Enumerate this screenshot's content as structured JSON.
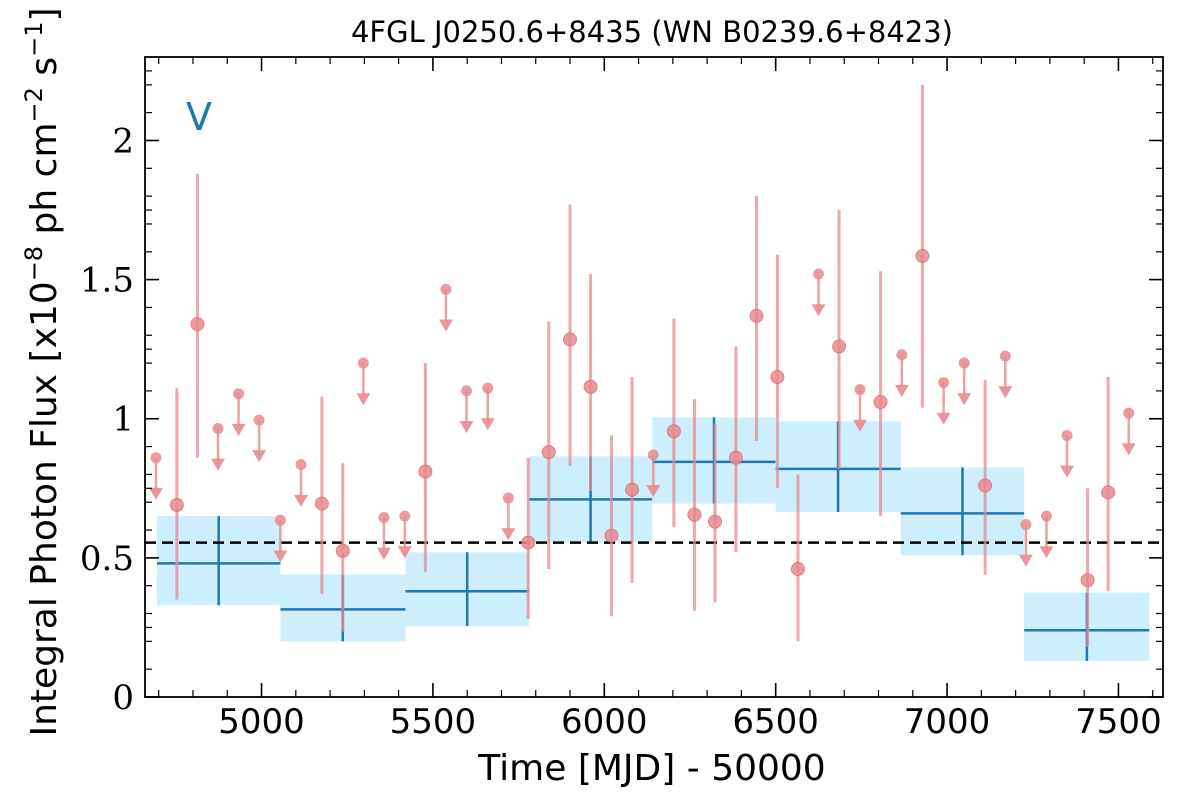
{
  "chart_data": {
    "type": "scatter",
    "title": "4FGL J0250.6+8435 (WN B0239.6+8423)",
    "xlabel": "Time [MJD] - 50000",
    "ylabel": "Integral Photon Flux [x10^-8 ph cm^-2 s^-1]",
    "ylabel_parts": {
      "prefix": "Integral Photon Flux [x10",
      "exp1": "−8",
      "mid": " ph cm",
      "exp2": "−2",
      "mid2": " s",
      "exp3": "−1",
      "suffix": "]"
    },
    "corner_label": "V",
    "xlim": [
      4660,
      7630
    ],
    "ylim": [
      0,
      2.3
    ],
    "x_ticks": [
      5000,
      5500,
      6000,
      6500,
      7000,
      7500
    ],
    "x_tick_labels": [
      "5000",
      "5500",
      "6000",
      "6500",
      "7000",
      "7500"
    ],
    "y_ticks": [
      0,
      0.5,
      1,
      1.5,
      2
    ],
    "y_tick_labels": [
      "0",
      "0.5",
      "1",
      "1.5",
      "2"
    ],
    "mean_flux": 0.555,
    "colors": {
      "points": "#e88a8f",
      "bins": "#1f77b4",
      "bin_fill": "#cdeefc",
      "corner_label": "#1f77b4"
    },
    "binned": [
      {
        "x_start": 4695,
        "x_end": 5055,
        "x_center": 4875,
        "y": 0.48,
        "y_low": 0.33,
        "y_high": 0.65
      },
      {
        "x_start": 5055,
        "x_end": 5420,
        "x_center": 5237,
        "y": 0.315,
        "y_low": 0.2,
        "y_high": 0.44
      },
      {
        "x_start": 5420,
        "x_end": 5780,
        "x_center": 5600,
        "y": 0.38,
        "y_low": 0.255,
        "y_high": 0.52
      },
      {
        "x_start": 5780,
        "x_end": 6140,
        "x_center": 5960,
        "y": 0.71,
        "y_low": 0.555,
        "y_high": 0.865
      },
      {
        "x_start": 6140,
        "x_end": 6500,
        "x_center": 6320,
        "y": 0.845,
        "y_low": 0.695,
        "y_high": 1.005
      },
      {
        "x_start": 6500,
        "x_end": 6865,
        "x_center": 6682,
        "y": 0.82,
        "y_low": 0.665,
        "y_high": 0.99
      },
      {
        "x_start": 6865,
        "x_end": 7225,
        "x_center": 7045,
        "y": 0.66,
        "y_low": 0.51,
        "y_high": 0.825
      },
      {
        "x_start": 7225,
        "x_end": 7590,
        "x_center": 7408,
        "y": 0.24,
        "y_low": 0.13,
        "y_high": 0.375
      }
    ],
    "detections": [
      {
        "x": 4753,
        "y": 0.69,
        "y_low": 0.35,
        "y_high": 1.11
      },
      {
        "x": 4813,
        "y": 1.34,
        "y_low": 0.86,
        "y_high": 1.88
      },
      {
        "x": 5176,
        "y": 0.695,
        "y_low": 0.37,
        "y_high": 1.08
      },
      {
        "x": 5237,
        "y": 0.525,
        "y_low": 0.235,
        "y_high": 0.84
      },
      {
        "x": 5478,
        "y": 0.81,
        "y_low": 0.45,
        "y_high": 1.2
      },
      {
        "x": 5778,
        "y": 0.555,
        "y_low": 0.28,
        "y_high": 0.86
      },
      {
        "x": 5838,
        "y": 0.88,
        "y_low": 0.46,
        "y_high": 1.35
      },
      {
        "x": 5900,
        "y": 1.285,
        "y_low": 0.83,
        "y_high": 1.77
      },
      {
        "x": 5960,
        "y": 1.115,
        "y_low": 0.74,
        "y_high": 1.52
      },
      {
        "x": 6021,
        "y": 0.58,
        "y_low": 0.29,
        "y_high": 0.94
      },
      {
        "x": 6081,
        "y": 0.745,
        "y_low": 0.41,
        "y_high": 1.15
      },
      {
        "x": 6203,
        "y": 0.955,
        "y_low": 0.61,
        "y_high": 1.36
      },
      {
        "x": 6263,
        "y": 0.655,
        "y_low": 0.31,
        "y_high": 1.07
      },
      {
        "x": 6323,
        "y": 0.63,
        "y_low": 0.34,
        "y_high": 0.98
      },
      {
        "x": 6384,
        "y": 0.86,
        "y_low": 0.52,
        "y_high": 1.26
      },
      {
        "x": 6444,
        "y": 1.37,
        "y_low": 0.92,
        "y_high": 1.8
      },
      {
        "x": 6505,
        "y": 1.15,
        "y_low": 0.75,
        "y_high": 1.59
      },
      {
        "x": 6565,
        "y": 0.46,
        "y_low": 0.2,
        "y_high": 0.8
      },
      {
        "x": 6685,
        "y": 1.26,
        "y_low": 0.82,
        "y_high": 1.75
      },
      {
        "x": 6806,
        "y": 1.06,
        "y_low": 0.65,
        "y_high": 1.53
      },
      {
        "x": 6928,
        "y": 1.585,
        "y_low": 1.04,
        "y_high": 2.2
      },
      {
        "x": 7111,
        "y": 0.76,
        "y_low": 0.44,
        "y_high": 1.14
      },
      {
        "x": 7410,
        "y": 0.42,
        "y_low": 0.18,
        "y_high": 0.75
      },
      {
        "x": 7470,
        "y": 0.735,
        "y_low": 0.38,
        "y_high": 1.15
      }
    ],
    "upper_limits": [
      {
        "x": 4692,
        "y": 0.86
      },
      {
        "x": 4873,
        "y": 0.965
      },
      {
        "x": 4933,
        "y": 1.09
      },
      {
        "x": 4993,
        "y": 0.995
      },
      {
        "x": 5055,
        "y": 0.635
      },
      {
        "x": 5115,
        "y": 0.835
      },
      {
        "x": 5297,
        "y": 1.2
      },
      {
        "x": 5357,
        "y": 0.645
      },
      {
        "x": 5418,
        "y": 0.65
      },
      {
        "x": 5538,
        "y": 1.465
      },
      {
        "x": 5598,
        "y": 1.1
      },
      {
        "x": 5660,
        "y": 1.11
      },
      {
        "x": 5720,
        "y": 0.715
      },
      {
        "x": 6143,
        "y": 0.87
      },
      {
        "x": 6625,
        "y": 1.52
      },
      {
        "x": 6746,
        "y": 1.105
      },
      {
        "x": 6868,
        "y": 1.23
      },
      {
        "x": 6990,
        "y": 1.13
      },
      {
        "x": 7050,
        "y": 1.2
      },
      {
        "x": 7170,
        "y": 1.225
      },
      {
        "x": 7230,
        "y": 0.62
      },
      {
        "x": 7290,
        "y": 0.65
      },
      {
        "x": 7350,
        "y": 0.94
      },
      {
        "x": 7530,
        "y": 1.02
      }
    ]
  }
}
